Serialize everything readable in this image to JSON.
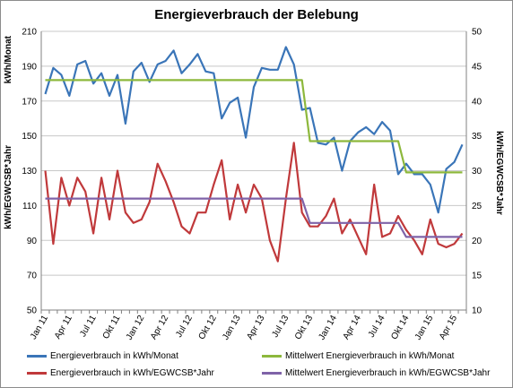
{
  "chart_data": {
    "type": "line",
    "title": "Energieverbrauch der Belebung",
    "left_axis": {
      "label_top": "kWh/Monat",
      "label_bottom": "kWh/EGWCSB*Jahr",
      "ylim": [
        50,
        210
      ],
      "ticks": [
        50,
        70,
        90,
        110,
        130,
        150,
        170,
        190,
        210
      ]
    },
    "right_axis": {
      "label": "kWh/EGWCSB*Jahr",
      "ylim": [
        10,
        50
      ],
      "ticks": [
        10,
        15,
        20,
        25,
        30,
        35,
        40,
        45,
        50
      ]
    },
    "x_labels": [
      "Jan 11",
      "Apr 11",
      "Jul 11",
      "Okt 11",
      "Jan 12",
      "Apr 12",
      "Jul 12",
      "Okt 12",
      "Jan 13",
      "Apr 13",
      "Jul 13",
      "Okt 13",
      "Jan 14",
      "Apr 14",
      "Jul 14",
      "Okt 14",
      "Jan 15",
      "Apr 15"
    ],
    "series": [
      {
        "name": "Energieverbrauch in kWh/Monat",
        "axis": "left",
        "color": "#3a75b8",
        "values": [
          174,
          189,
          185,
          173,
          191,
          193,
          180,
          186,
          173,
          185,
          157,
          187,
          192,
          181,
          191,
          193,
          199,
          186,
          191,
          197,
          187,
          186,
          160,
          169,
          172,
          149,
          178,
          189,
          188,
          188,
          201,
          191,
          165,
          166,
          146,
          145,
          149,
          130,
          147,
          152,
          155,
          151,
          158,
          153,
          128,
          134,
          128,
          128,
          122,
          106,
          131,
          135,
          145
        ]
      },
      {
        "name": "Mittelwert Energieverbrauch in kWh/Monat",
        "axis": "left",
        "color": "#8db83c",
        "values": [
          182,
          182,
          182,
          182,
          182,
          182,
          182,
          182,
          182,
          182,
          182,
          182,
          182,
          182,
          182,
          182,
          182,
          182,
          182,
          182,
          182,
          182,
          182,
          182,
          182,
          182,
          182,
          182,
          182,
          182,
          182,
          182,
          182,
          147,
          147,
          147,
          147,
          147,
          147,
          147,
          147,
          147,
          147,
          147,
          147,
          129,
          129,
          129,
          129,
          129,
          129,
          129,
          129
        ]
      },
      {
        "name": "Energieverbrauch in kWh/EGWCSB*Jahr",
        "axis": "right",
        "color": "#c0393b",
        "values": [
          30,
          19.5,
          29,
          25,
          29,
          27,
          21,
          29,
          23,
          30,
          24,
          22.5,
          23,
          25.5,
          31,
          28.5,
          25.5,
          22,
          21,
          24,
          24,
          28,
          31.5,
          23,
          28,
          24,
          28,
          26,
          20,
          17,
          26,
          34,
          24,
          22,
          22,
          23.5,
          26,
          21,
          23,
          20.5,
          18,
          28,
          20.5,
          21,
          23.5,
          21.5,
          20,
          18,
          23,
          19.5,
          19,
          19.5,
          21
        ]
      },
      {
        "name": "Mittelwert Energieverbrauch in kWh/EGWCSB*Jahr",
        "axis": "right",
        "color": "#7f63a8",
        "values": [
          26,
          26,
          26,
          26,
          26,
          26,
          26,
          26,
          26,
          26,
          26,
          26,
          26,
          26,
          26,
          26,
          26,
          26,
          26,
          26,
          26,
          26,
          26,
          26,
          26,
          26,
          26,
          26,
          26,
          26,
          26,
          26,
          26,
          22.5,
          22.5,
          22.5,
          22.5,
          22.5,
          22.5,
          22.5,
          22.5,
          22.5,
          22.5,
          22.5,
          22.5,
          20.5,
          20.5,
          20.5,
          20.5,
          20.5,
          20.5,
          20.5,
          20.5
        ]
      }
    ],
    "grid": "horizontal",
    "legend_position": "bottom"
  }
}
